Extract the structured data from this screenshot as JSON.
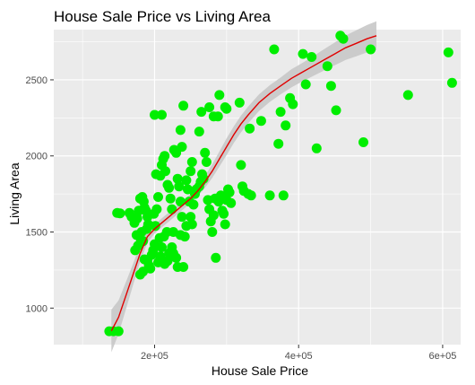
{
  "chart_data": {
    "type": "scatter",
    "title": "House Sale Price vs Living Area",
    "xlabel": "House Sale Price",
    "ylabel": "Living Area",
    "xlim": [
      60000,
      625000
    ],
    "ylim": [
      760,
      2830
    ],
    "x_ticks": [
      {
        "value": 200000,
        "label": "2e+05"
      },
      {
        "value": 400000,
        "label": "4e+05"
      },
      {
        "value": 600000,
        "label": "6e+05"
      }
    ],
    "y_ticks": [
      {
        "value": 1000,
        "label": "1000"
      },
      {
        "value": 1500,
        "label": "1500"
      },
      {
        "value": 2000,
        "label": "2000"
      },
      {
        "value": 2500,
        "label": "2500"
      }
    ],
    "grid": true,
    "legend": "none",
    "colors": {
      "points": "#00EE00",
      "smooth_line": "#E00000",
      "confidence_band": "#C8C8C8",
      "panel_background": "#EBEBEB",
      "grid": "#FFFFFF"
    },
    "points": [
      [
        137000,
        848
      ],
      [
        143000,
        848
      ],
      [
        150000,
        848
      ],
      [
        148000,
        1625
      ],
      [
        152000,
        1623
      ],
      [
        165000,
        1625
      ],
      [
        168000,
        1600
      ],
      [
        172000,
        1560
      ],
      [
        175000,
        1480
      ],
      [
        176000,
        1590
      ],
      [
        178000,
        1640
      ],
      [
        180000,
        1720
      ],
      [
        183000,
        1730
      ],
      [
        185000,
        1700
      ],
      [
        186000,
        1660
      ],
      [
        188000,
        1640
      ],
      [
        190000,
        1600
      ],
      [
        191000,
        1550
      ],
      [
        189000,
        1520
      ],
      [
        182000,
        1500
      ],
      [
        173000,
        1380
      ],
      [
        177000,
        1410
      ],
      [
        181000,
        1450
      ],
      [
        184000,
        1440
      ],
      [
        186000,
        1320
      ],
      [
        190000,
        1310
      ],
      [
        192000,
        1280
      ],
      [
        184000,
        1240
      ],
      [
        180000,
        1220
      ],
      [
        194000,
        1260
      ],
      [
        196000,
        1350
      ],
      [
        198000,
        1380
      ],
      [
        200000,
        1420
      ],
      [
        201000,
        1540
      ],
      [
        199000,
        1620
      ],
      [
        203000,
        1650
      ],
      [
        205000,
        1730
      ],
      [
        202000,
        1880
      ],
      [
        208000,
        1870
      ],
      [
        210000,
        1940
      ],
      [
        212000,
        1980
      ],
      [
        214000,
        2000
      ],
      [
        200000,
        2270
      ],
      [
        210000,
        2270
      ],
      [
        215000,
        1900
      ],
      [
        218000,
        1810
      ],
      [
        220000,
        1790
      ],
      [
        222000,
        1720
      ],
      [
        224000,
        1650
      ],
      [
        226000,
        1500
      ],
      [
        224000,
        1400
      ],
      [
        220000,
        1360
      ],
      [
        218000,
        1310
      ],
      [
        214000,
        1290
      ],
      [
        210000,
        1400
      ],
      [
        208000,
        1340
      ],
      [
        205000,
        1300
      ],
      [
        207000,
        1460
      ],
      [
        213000,
        1470
      ],
      [
        217000,
        1500
      ],
      [
        226000,
        1360
      ],
      [
        230000,
        1330
      ],
      [
        232000,
        1270
      ],
      [
        240000,
        1270
      ],
      [
        227000,
        2040
      ],
      [
        230000,
        2020
      ],
      [
        232000,
        1850
      ],
      [
        234000,
        1800
      ],
      [
        236000,
        1700
      ],
      [
        238000,
        1600
      ],
      [
        236000,
        1480
      ],
      [
        242000,
        1470
      ],
      [
        244000,
        1540
      ],
      [
        238000,
        2060
      ],
      [
        236000,
        2170
      ],
      [
        240000,
        2330
      ],
      [
        244000,
        1840
      ],
      [
        246000,
        1780
      ],
      [
        248000,
        1700
      ],
      [
        250000,
        1600
      ],
      [
        252000,
        1550
      ],
      [
        254000,
        1680
      ],
      [
        256000,
        1750
      ],
      [
        250000,
        1900
      ],
      [
        252000,
        1960
      ],
      [
        258000,
        1780
      ],
      [
        262000,
        1800
      ],
      [
        264000,
        1830
      ],
      [
        266000,
        1880
      ],
      [
        268000,
        1850
      ],
      [
        262000,
        2160
      ],
      [
        270000,
        2020
      ],
      [
        272000,
        1960
      ],
      [
        274000,
        1710
      ],
      [
        276000,
        1650
      ],
      [
        278000,
        1570
      ],
      [
        280000,
        1500
      ],
      [
        282000,
        1610
      ],
      [
        284000,
        1720
      ],
      [
        285000,
        1330
      ],
      [
        265000,
        2290
      ],
      [
        276000,
        2320
      ],
      [
        282000,
        2260
      ],
      [
        288000,
        2260
      ],
      [
        290000,
        2400
      ],
      [
        289000,
        1700
      ],
      [
        292000,
        1740
      ],
      [
        294000,
        1640
      ],
      [
        296000,
        1620
      ],
      [
        298000,
        1550
      ],
      [
        300000,
        1710
      ],
      [
        302000,
        1780
      ],
      [
        304000,
        1760
      ],
      [
        306000,
        1690
      ],
      [
        298000,
        2320
      ],
      [
        300000,
        2310
      ],
      [
        318000,
        2350
      ],
      [
        320000,
        1940
      ],
      [
        322000,
        1800
      ],
      [
        324000,
        1770
      ],
      [
        330000,
        1750
      ],
      [
        332000,
        2180
      ],
      [
        334000,
        1740
      ],
      [
        348000,
        2230
      ],
      [
        360000,
        1740
      ],
      [
        366000,
        2700
      ],
      [
        372000,
        2080
      ],
      [
        375000,
        2290
      ],
      [
        379000,
        1740
      ],
      [
        382000,
        2200
      ],
      [
        388000,
        2380
      ],
      [
        392000,
        2340
      ],
      [
        406000,
        2670
      ],
      [
        410000,
        2470
      ],
      [
        418000,
        2650
      ],
      [
        425000,
        2050
      ],
      [
        440000,
        2590
      ],
      [
        445000,
        2460
      ],
      [
        452000,
        2300
      ],
      [
        458000,
        2790
      ],
      [
        462000,
        2770
      ],
      [
        490000,
        2090
      ],
      [
        500000,
        2700
      ],
      [
        552000,
        2400
      ],
      [
        608000,
        2680
      ],
      [
        613000,
        2480
      ]
    ],
    "smooth": [
      [
        140000,
        850
      ],
      [
        150000,
        940
      ],
      [
        160000,
        1080
      ],
      [
        170000,
        1220
      ],
      [
        180000,
        1360
      ],
      [
        190000,
        1470
      ],
      [
        200000,
        1520
      ],
      [
        210000,
        1560
      ],
      [
        220000,
        1600
      ],
      [
        230000,
        1640
      ],
      [
        240000,
        1680
      ],
      [
        250000,
        1720
      ],
      [
        260000,
        1770
      ],
      [
        270000,
        1830
      ],
      [
        280000,
        1900
      ],
      [
        290000,
        1980
      ],
      [
        300000,
        2060
      ],
      [
        310000,
        2140
      ],
      [
        320000,
        2210
      ],
      [
        330000,
        2270
      ],
      [
        345000,
        2350
      ],
      [
        360000,
        2410
      ],
      [
        375000,
        2460
      ],
      [
        390000,
        2510
      ],
      [
        405000,
        2550
      ],
      [
        420000,
        2590
      ],
      [
        435000,
        2630
      ],
      [
        450000,
        2670
      ],
      [
        465000,
        2710
      ],
      [
        480000,
        2740
      ],
      [
        495000,
        2770
      ],
      [
        508000,
        2790
      ]
    ],
    "band_halfwidth": [
      140,
      110,
      90,
      70,
      55,
      40,
      30,
      30,
      30,
      30,
      30,
      30,
      35,
      40,
      45,
      50,
      55,
      55,
      55,
      55,
      55,
      55,
      55,
      60,
      60,
      65,
      70,
      75,
      80,
      85,
      90,
      95
    ]
  }
}
